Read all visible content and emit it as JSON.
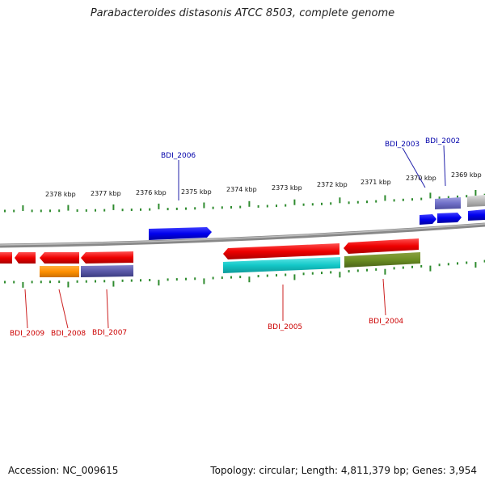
{
  "title": "Parabacteroides distasonis ATCC 8503, complete genome",
  "footer": {
    "accession": "Accession: NC_009615",
    "genome_info": "Topology: circular; Length: 4,811,379 bp; Genes: 3,954"
  },
  "scale": {
    "tick_labels": [
      "2378 kbp",
      "2377 kbp",
      "2376 kbp",
      "2375 kbp",
      "2374 kbp",
      "2373 kbp",
      "2372 kbp",
      "2371 kbp",
      "2370 kbp",
      "2369 kbp"
    ]
  },
  "colors": {
    "backbone": "#888888",
    "tick": "#2e8b2e",
    "forward_gene": "#0000ee",
    "reverse_gene": "#ee0000",
    "plus_label": "#0000aa",
    "minus_label": "#cc0000"
  },
  "genes": [
    {
      "id": "BDI_2002",
      "strand": "+"
    },
    {
      "id": "BDI_2003",
      "strand": "+"
    },
    {
      "id": "BDI_2004",
      "strand": "-"
    },
    {
      "id": "BDI_2005",
      "strand": "-"
    },
    {
      "id": "BDI_2006",
      "strand": "+"
    },
    {
      "id": "BDI_2007",
      "strand": "-"
    },
    {
      "id": "BDI_2008",
      "strand": "-"
    },
    {
      "id": "BDI_2009",
      "strand": "-"
    }
  ]
}
